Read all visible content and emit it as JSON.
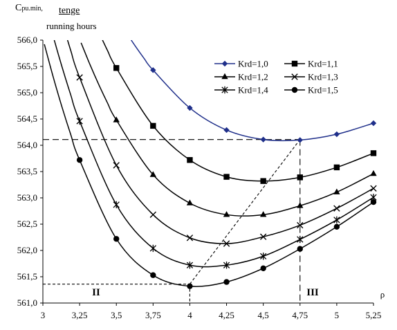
{
  "chart_data": {
    "type": "line",
    "ylabel_main": "C",
    "ylabel_sub": "pu.min,",
    "ylabel_unit_top": "tenge",
    "ylabel_unit_bottom": "running hours",
    "xlabel": "ρ",
    "xlim": [
      3,
      5.25
    ],
    "ylim": [
      561.0,
      566.0
    ],
    "x_ticks": [
      "3",
      "3,25",
      "3,5",
      "3,75",
      "4",
      "4,25",
      "4,5",
      "4,75",
      "5",
      "5,25"
    ],
    "y_ticks": [
      "561,0",
      "561,5",
      "562,0",
      "562,5",
      "563,0",
      "563,5",
      "564,0",
      "564,5",
      "565,0",
      "565,5",
      "566,0"
    ],
    "x": [
      3.25,
      3.5,
      3.75,
      4.0,
      4.25,
      4.5,
      4.75,
      5.0,
      5.25
    ],
    "series": [
      {
        "name": "Krd=1,0",
        "marker": "diamond",
        "color": "#1f2f8a",
        "values": [
          null,
          null,
          565.43,
          564.71,
          564.29,
          564.11,
          564.1,
          564.21,
          564.42
        ]
      },
      {
        "name": "Krd=1,1",
        "marker": "square",
        "color": "#000000",
        "values": [
          null,
          565.47,
          564.37,
          563.72,
          563.4,
          563.32,
          563.39,
          563.58,
          563.85
        ]
      },
      {
        "name": "Krd=1,2",
        "marker": "triangle",
        "color": "#000000",
        "values": [
          null,
          564.48,
          563.44,
          562.9,
          562.68,
          562.68,
          562.85,
          563.11,
          563.46
        ]
      },
      {
        "name": "Krd=1,3",
        "marker": "x",
        "color": "#000000",
        "values": [
          565.29,
          563.62,
          562.68,
          562.24,
          562.13,
          562.26,
          562.48,
          562.8,
          563.18
        ]
      },
      {
        "name": "Krd=1,4",
        "marker": "star",
        "color": "#000000",
        "values": [
          564.46,
          562.87,
          562.04,
          561.72,
          561.72,
          561.89,
          562.21,
          562.58,
          563.01
        ]
      },
      {
        "name": "Krd=1,5",
        "marker": "circle",
        "color": "#000000",
        "values": [
          563.72,
          562.22,
          561.53,
          561.32,
          561.4,
          561.66,
          562.03,
          562.45,
          562.92
        ]
      }
    ],
    "regions": [
      "II",
      "III"
    ],
    "reference_lines": {
      "upper_min": {
        "x": 4.75,
        "y": 564.11
      },
      "lower_min": {
        "x": 4.0,
        "y": 561.36
      }
    },
    "legend_position": "top-right",
    "grid": false
  }
}
